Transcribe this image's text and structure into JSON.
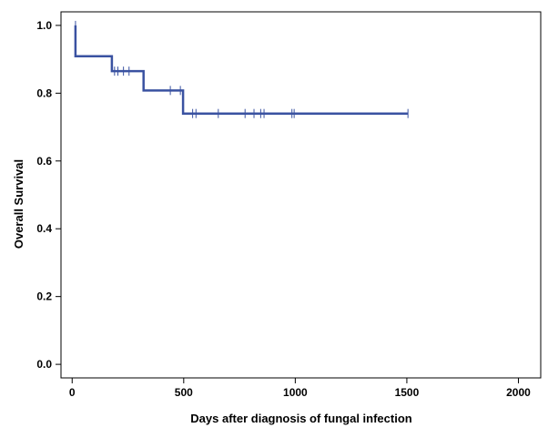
{
  "chart_data": {
    "type": "line",
    "title": "",
    "xlabel": "Days after diagnosis of fungal infection",
    "ylabel": "Overall Survival",
    "xlim": [
      -50,
      2100
    ],
    "ylim": [
      -0.04,
      1.04
    ],
    "xticks": [
      0,
      500,
      1000,
      1500,
      2000
    ],
    "yticks": [
      0.0,
      0.2,
      0.4,
      0.6,
      0.8,
      1.0
    ],
    "ytick_labels": [
      "0.0",
      "0.2",
      "0.4",
      "0.6",
      "0.8",
      "1.0"
    ],
    "grid": false,
    "legend": false,
    "line_color": "#3a52a1",
    "series": [
      {
        "step_points": [
          [
            15,
            1.0
          ],
          [
            15,
            0.909
          ],
          [
            178,
            0.909
          ],
          [
            178,
            0.865
          ],
          [
            320,
            0.865
          ],
          [
            320,
            0.808
          ],
          [
            497,
            0.808
          ],
          [
            497,
            0.74
          ],
          [
            1505,
            0.74
          ]
        ],
        "censored": [
          [
            15,
            1.0
          ],
          [
            190,
            0.865
          ],
          [
            205,
            0.865
          ],
          [
            230,
            0.865
          ],
          [
            255,
            0.865
          ],
          [
            440,
            0.808
          ],
          [
            485,
            0.808
          ],
          [
            540,
            0.74
          ],
          [
            555,
            0.74
          ],
          [
            655,
            0.74
          ],
          [
            775,
            0.74
          ],
          [
            815,
            0.74
          ],
          [
            845,
            0.74
          ],
          [
            860,
            0.74
          ],
          [
            985,
            0.74
          ],
          [
            995,
            0.74
          ],
          [
            1505,
            0.74
          ]
        ]
      }
    ]
  }
}
